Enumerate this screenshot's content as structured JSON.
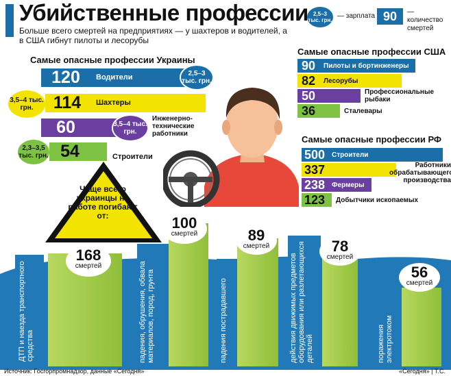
{
  "header": {
    "title": "Убийственные профессии",
    "subtitle": "Больше всего смертей на предприятиях — у шахтеров и водителей, а в США гибнут пилоты и лесорубы",
    "legend_salary_oval": "2,5–3 тыс. грн.",
    "legend_salary_text": "— зарплата",
    "legend_count_box": "90",
    "legend_count_text": "— количество смертей"
  },
  "ukraine": {
    "title": "Самые опасные профессии Украины",
    "rows": [
      {
        "value": "120",
        "label": "Водители",
        "salary": "2,5–3 тыс. грн.",
        "color": "#1a6fa8"
      },
      {
        "value": "114",
        "label": "Шахтеры",
        "salary": "3,5–4 тыс. грн.",
        "color": "#f2e400"
      },
      {
        "value": "60",
        "label": "Инженерно-технические работники",
        "salary": "3,5–4 тыс. грн.",
        "color": "#6b3fa0"
      },
      {
        "value": "54",
        "label": "Строители",
        "salary": "2,3–3,5 тыс. грн.",
        "color": "#7dc242"
      }
    ]
  },
  "usa": {
    "title": "Самые опасные профессии США",
    "rows": [
      {
        "value": "90",
        "label": "Пилоты и бортинженеры",
        "color": "#1a6fa8"
      },
      {
        "value": "82",
        "label": "Лесорубы",
        "color": "#f2e400"
      },
      {
        "value": "50",
        "label": "Профессиональные рыбаки",
        "color": "#6b3fa0"
      },
      {
        "value": "36",
        "label": "Сталевары",
        "color": "#7dc242"
      }
    ]
  },
  "rf": {
    "title": "Самые опасные профессии РФ",
    "rows": [
      {
        "value": "500",
        "label": "Строители",
        "color": "#1a6fa8"
      },
      {
        "value": "337",
        "label": "Работники обрабатывающего производства",
        "color": "#f2e400"
      },
      {
        "value": "238",
        "label": "Фермеры",
        "color": "#6b3fa0"
      },
      {
        "value": "123",
        "label": "Добытчики ископаемых",
        "color": "#7dc242"
      }
    ]
  },
  "warning": "Чаще всего украинцы на работе погибают от:",
  "causes": {
    "unit": "смертей",
    "items": [
      {
        "value": "168",
        "label": "ДТП и наезда транспортного средства"
      },
      {
        "value": "100",
        "label": "падения, обрушения, обвала материалов, пород, грунта"
      },
      {
        "value": "89",
        "label": "падения пострадавшего"
      },
      {
        "value": "78",
        "label": "действия движимых предметов оборудования или разлетающихся деталей"
      },
      {
        "value": "56",
        "label": "поражения электротоком"
      }
    ]
  },
  "chart_data": [
    {
      "type": "bar",
      "title": "Самые опасные профессии Украины",
      "categories": [
        "Водители",
        "Шахтеры",
        "Инженерно-технические работники",
        "Строители"
      ],
      "values": [
        120,
        114,
        60,
        54
      ],
      "salaries": [
        "2,5–3 тыс. грн.",
        "3,5–4 тыс. грн.",
        "3,5–4 тыс. грн.",
        "2,3–3,5 тыс. грн."
      ]
    },
    {
      "type": "bar",
      "title": "Самые опасные профессии США",
      "categories": [
        "Пилоты и бортинженеры",
        "Лесорубы",
        "Профессиональные рыбаки",
        "Сталевары"
      ],
      "values": [
        90,
        82,
        50,
        36
      ]
    },
    {
      "type": "bar",
      "title": "Самые опасные профессии РФ",
      "categories": [
        "Строители",
        "Работники обрабатывающего производства",
        "Фермеры",
        "Добытчики ископаемых"
      ],
      "values": [
        500,
        337,
        238,
        123
      ]
    },
    {
      "type": "bar",
      "title": "Чаще всего украинцы на работе погибают от:",
      "categories": [
        "ДТП и наезда транспортного средства",
        "падения, обрушения, обвала материалов, пород, грунта",
        "падения пострадавшего",
        "действия движимых предметов оборудования или разлетающихся деталей",
        "поражения электротоком"
      ],
      "values": [
        168,
        100,
        89,
        78,
        56
      ],
      "ylabel": "смертей"
    }
  ],
  "footer": {
    "source": "Источник: Госгорпромнадзор, данные «Сегодня»",
    "credit": "«Сегодня» | Т.С."
  }
}
